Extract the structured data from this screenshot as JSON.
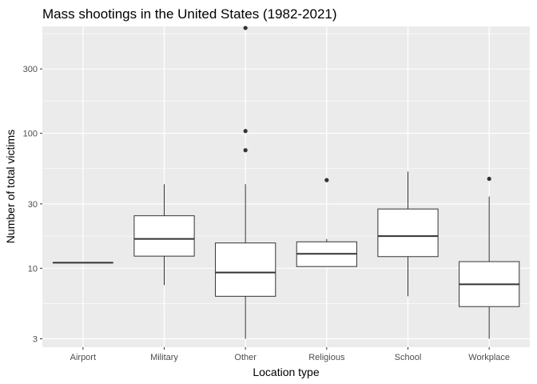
{
  "chart_data": {
    "type": "boxplot",
    "title": "Mass shootings in the United States (1982-2021)",
    "xlabel": "Location type",
    "ylabel": "Number of total victims",
    "y_scale": "log10",
    "ylim": [
      2.6,
      620
    ],
    "y_ticks": [
      3,
      10,
      30,
      100,
      300
    ],
    "y_minor_ticks": [
      5.477,
      17.32,
      54.77,
      173.2,
      547.7
    ],
    "grid": true,
    "background": "#ebebeb",
    "grid_color": "#ffffff",
    "box_fill": "#ffffff",
    "line_color": "#333333",
    "categories": [
      "Airport",
      "Military",
      "Other",
      "Religious",
      "School",
      "Workplace"
    ],
    "boxes": [
      {
        "category": "Airport",
        "min": 11,
        "q1": 11,
        "median": 11,
        "q3": 11,
        "max": 11,
        "outliers": []
      },
      {
        "category": "Military",
        "min": 7.5,
        "q1": 12.3,
        "median": 16.5,
        "q3": 24.5,
        "max": 42,
        "outliers": []
      },
      {
        "category": "Other",
        "min": 3,
        "q1": 6.2,
        "median": 9.3,
        "q3": 15.4,
        "max": 42,
        "outliers": [
          75,
          104,
          604
        ]
      },
      {
        "category": "Religious",
        "min": 10.3,
        "q1": 10.3,
        "median": 12.8,
        "q3": 15.7,
        "max": 16.5,
        "outliers": [
          45
        ]
      },
      {
        "category": "School",
        "min": 6.2,
        "q1": 12.2,
        "median": 17.3,
        "q3": 27.5,
        "max": 52,
        "outliers": []
      },
      {
        "category": "Workplace",
        "min": 3,
        "q1": 5.2,
        "median": 7.6,
        "q3": 11.2,
        "max": 34,
        "outliers": [
          46
        ]
      }
    ]
  }
}
